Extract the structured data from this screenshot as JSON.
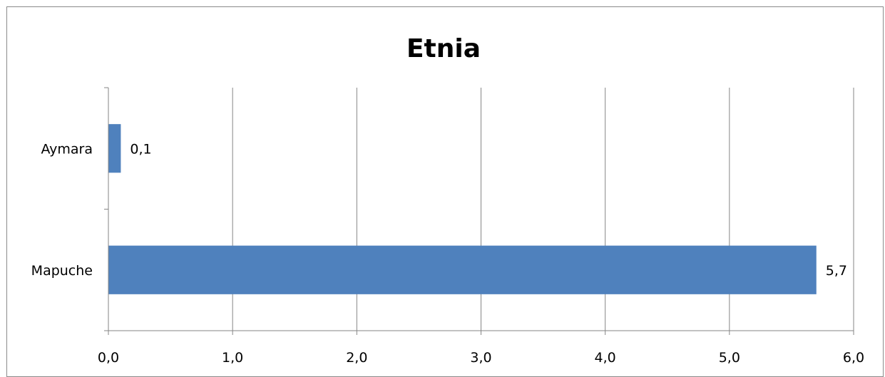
{
  "chart_data": {
    "type": "bar",
    "orientation": "horizontal",
    "title": "Etnia",
    "categories": [
      "Aymara",
      "Mapuche"
    ],
    "values": [
      0.1,
      5.7
    ],
    "value_labels": [
      "0,1",
      "5,7"
    ],
    "xlim": [
      0,
      6
    ],
    "x_ticks": [
      0,
      1,
      2,
      3,
      4,
      5,
      6
    ],
    "x_tick_labels": [
      "0,0",
      "1,0",
      "2,0",
      "3,0",
      "4,0",
      "5,0",
      "6,0"
    ],
    "grid": "vertical",
    "bar_color": "#4F81BD",
    "grid_color": "#868686",
    "legend": "none"
  }
}
